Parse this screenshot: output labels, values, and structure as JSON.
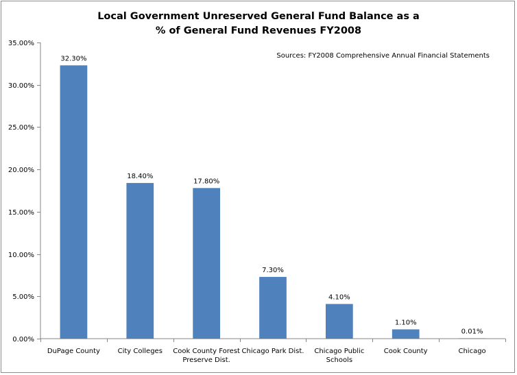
{
  "chart_data": {
    "type": "bar",
    "title": "Local Government Unreserved General Fund Balance as a",
    "subtitle": "% of General Fund Revenues FY2008",
    "annotation": "Sources: FY2008 Comprehensive Annual Financial Statements",
    "categories": [
      [
        "DuPage County"
      ],
      [
        "City Colleges"
      ],
      [
        "Cook County Forest",
        "Preserve Dist."
      ],
      [
        "Chicago Park Dist."
      ],
      [
        "Chicago Public",
        "Schools"
      ],
      [
        "Cook County"
      ],
      [
        "Chicago"
      ]
    ],
    "values": [
      32.3,
      18.4,
      17.8,
      7.3,
      4.1,
      1.1,
      0.01
    ],
    "data_labels": [
      "32.30%",
      "18.40%",
      "17.80%",
      "7.30%",
      "4.10%",
      "1.10%",
      "0.01%"
    ],
    "ylim": [
      0,
      35
    ],
    "yticks": [
      0,
      5,
      10,
      15,
      20,
      25,
      30,
      35
    ],
    "ytick_labels": [
      "0.00%",
      "5.00%",
      "10.00%",
      "15.00%",
      "20.00%",
      "25.00%",
      "30.00%",
      "35.00%"
    ],
    "xlabel": "",
    "ylabel": "",
    "grid": false,
    "legend": "none",
    "bar_color": "#4f81bd",
    "axis_color": "#868686"
  }
}
